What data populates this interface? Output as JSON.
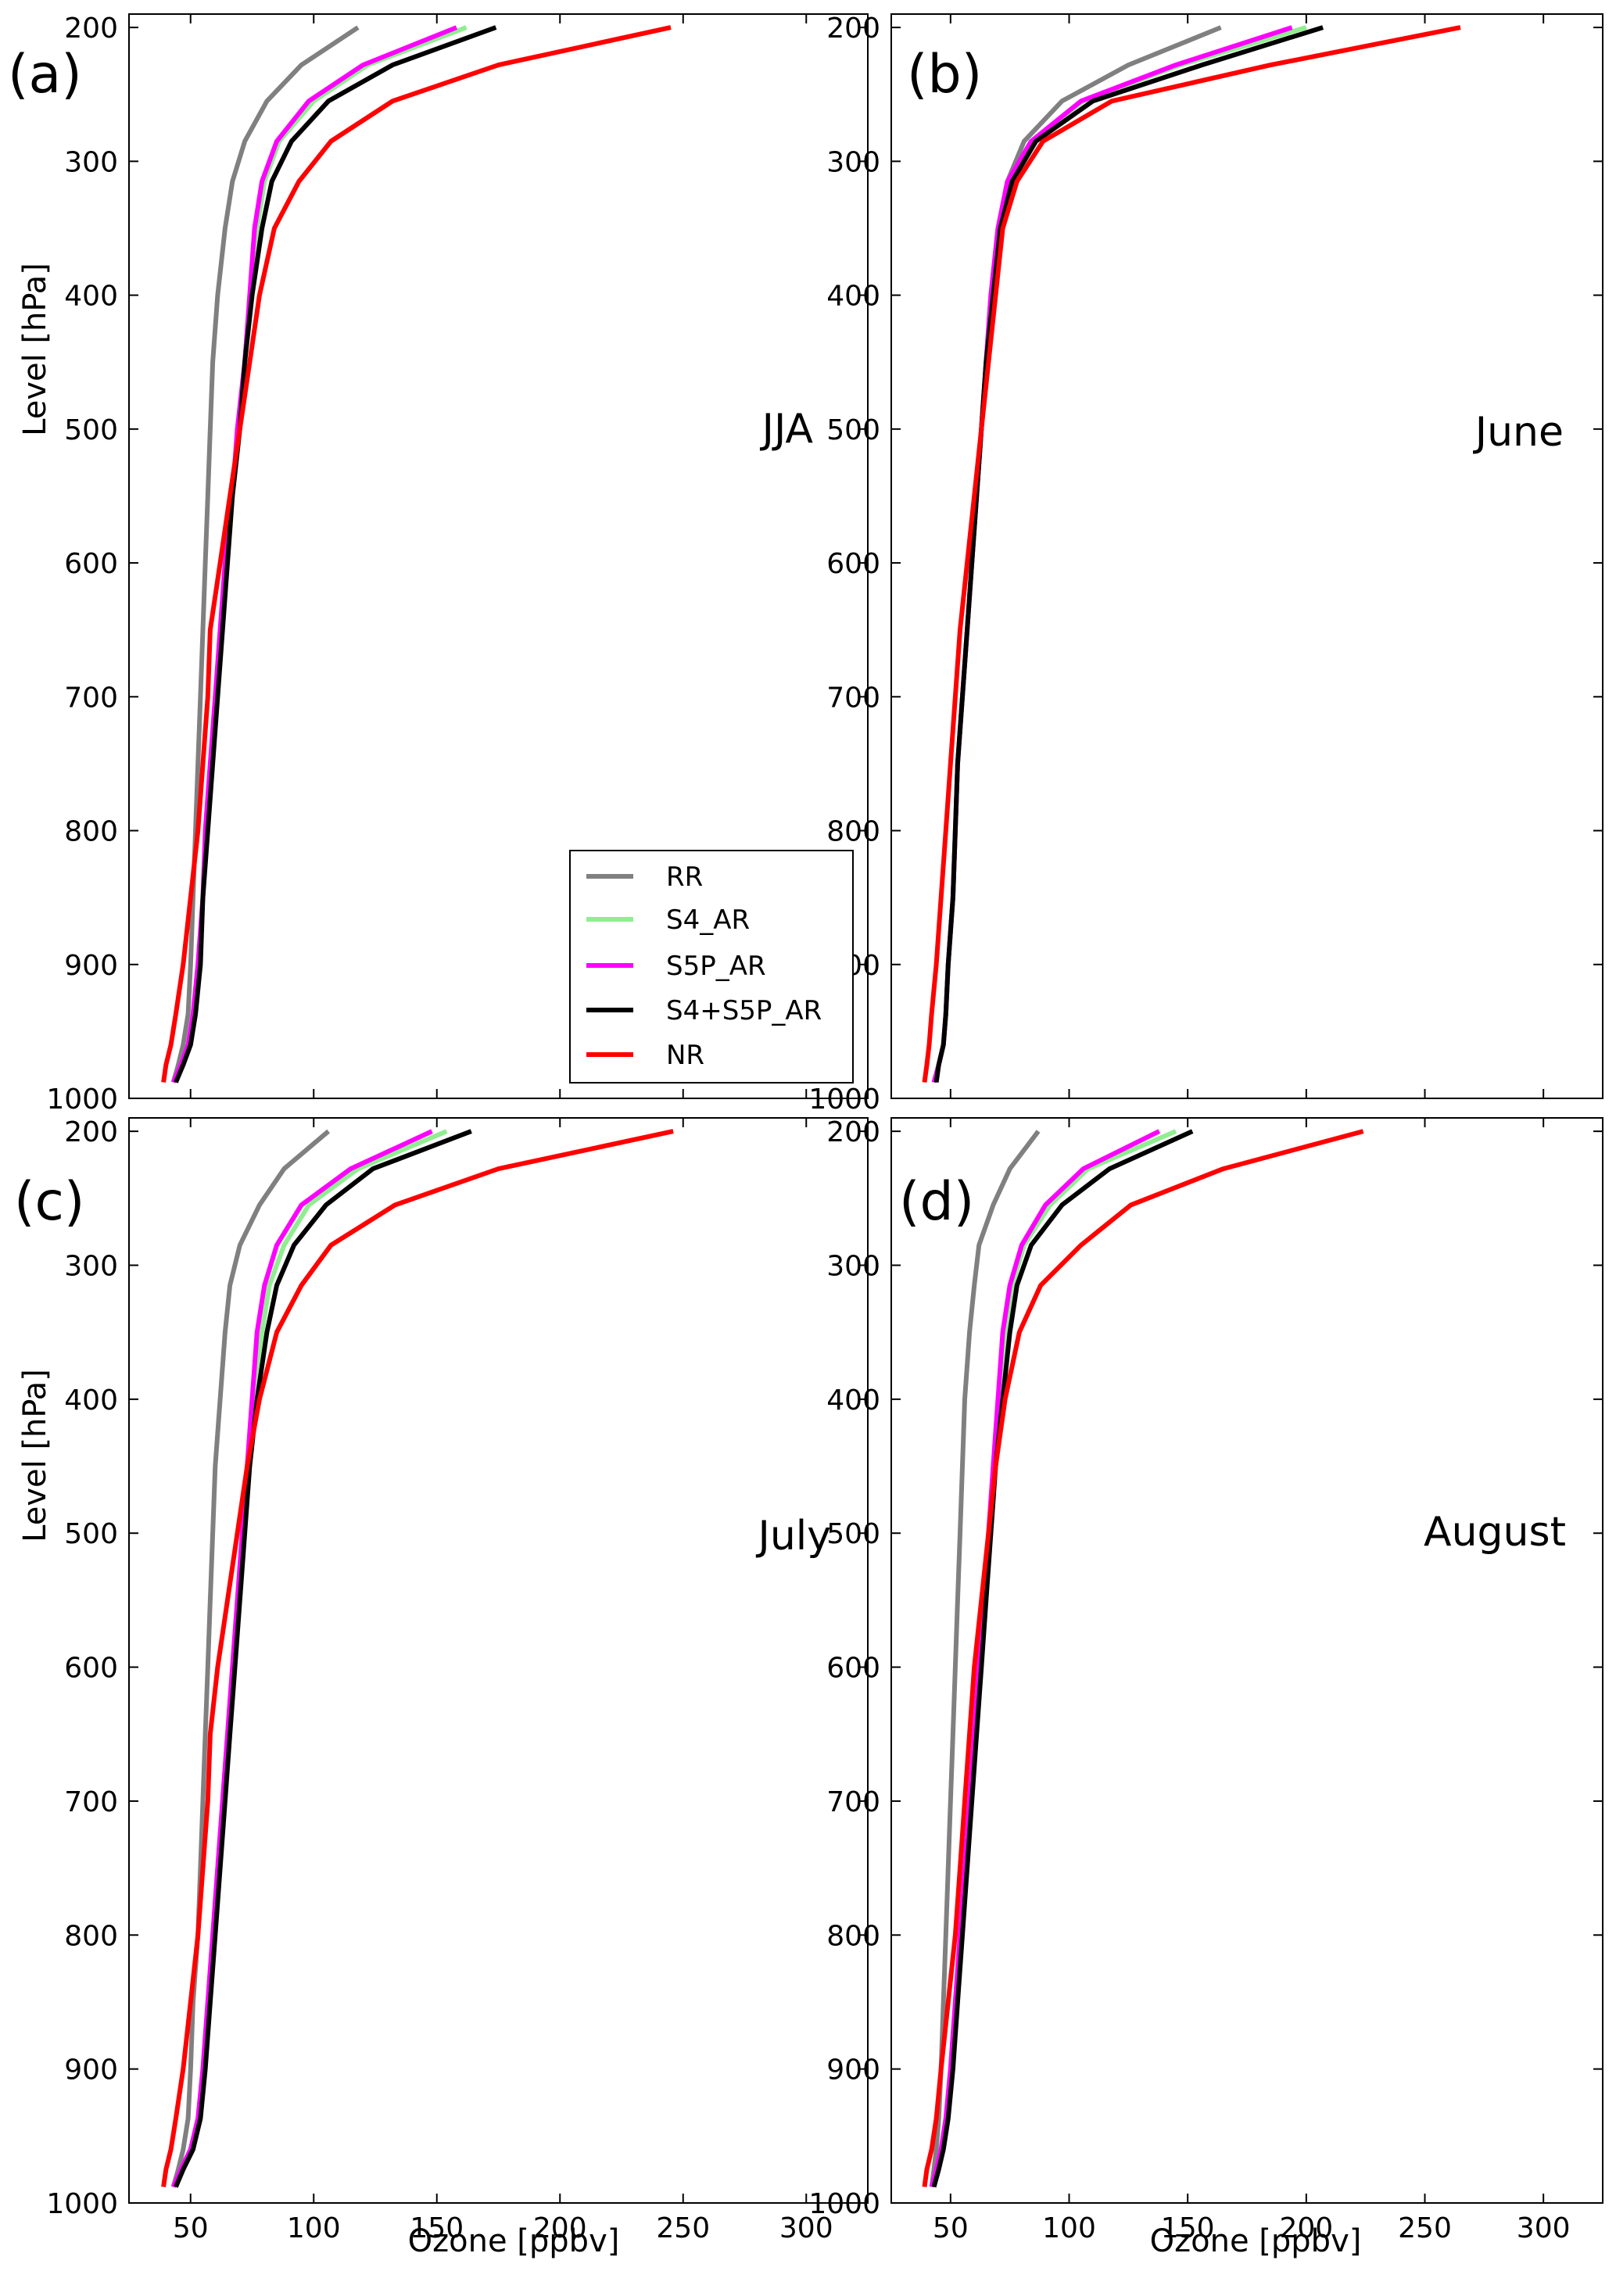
{
  "figure": {
    "ylabel": "Level [hPa]",
    "xlabel": "Ozone [ppbv]"
  },
  "colors": {
    "RR": "#808080",
    "S4_AR": "#90ee90",
    "S5P_AR": "#ff00ff",
    "S4+S5P_AR": "#000000",
    "NR": "#ff0000"
  },
  "legend": {
    "placement": "lower-right of panel (a)",
    "entries": [
      "RR",
      "S4_AR",
      "S5P_AR",
      "S4+S5P_AR",
      "NR"
    ]
  },
  "chart_data": [
    {
      "type": "line",
      "panel": "(a)",
      "label": "JJA",
      "xlim": [
        25,
        325
      ],
      "ylim": [
        1000,
        190
      ],
      "xticks": [
        50,
        100,
        150,
        200,
        250,
        300
      ],
      "yticks": [
        200,
        300,
        400,
        500,
        600,
        700,
        800,
        900,
        1000
      ],
      "y": [
        988,
        975,
        960,
        937,
        900,
        850,
        800,
        750,
        700,
        650,
        600,
        550,
        500,
        450,
        400,
        350,
        315,
        285,
        255,
        228,
        200
      ],
      "series": [
        {
          "name": "RR",
          "values": [
            43,
            45,
            47,
            49,
            50,
            51,
            52,
            53,
            54,
            55,
            56,
            57,
            58,
            59,
            61,
            64,
            67,
            72,
            81,
            95,
            118
          ]
        },
        {
          "name": "S4_AR",
          "values": [
            43,
            46,
            49,
            51,
            53,
            55,
            56,
            58,
            60,
            62,
            64,
            67,
            69,
            72,
            74,
            77,
            80,
            86,
            100,
            122,
            162
          ]
        },
        {
          "name": "S5P_AR",
          "values": [
            43,
            46,
            49,
            51,
            53,
            55,
            56,
            58,
            60,
            62,
            64,
            67,
            69,
            72,
            74,
            76,
            79,
            85,
            98,
            120,
            158
          ]
        },
        {
          "name": "S4+S5P_AR",
          "values": [
            44,
            47,
            50,
            52,
            54,
            55,
            57,
            59,
            61,
            63,
            65,
            67,
            70,
            72,
            75,
            79,
            83,
            91,
            106,
            132,
            174
          ]
        },
        {
          "name": "NR",
          "values": [
            39,
            40,
            42,
            44,
            47,
            50,
            53,
            55,
            57,
            58,
            62,
            66,
            70,
            74,
            78,
            84,
            94,
            107,
            132,
            175,
            245
          ]
        }
      ]
    },
    {
      "type": "line",
      "panel": "(b)",
      "label": "June",
      "xlim": [
        25,
        325
      ],
      "ylim": [
        1000,
        190
      ],
      "xticks": [
        50,
        100,
        150,
        200,
        250,
        300
      ],
      "yticks": [
        200,
        300,
        400,
        500,
        600,
        700,
        800,
        900,
        1000
      ],
      "y": [
        988,
        975,
        960,
        937,
        900,
        850,
        800,
        750,
        700,
        650,
        600,
        550,
        500,
        450,
        400,
        350,
        315,
        285,
        255,
        228,
        200
      ],
      "series": [
        {
          "name": "RR",
          "values": [
            43,
            45,
            47,
            48,
            49,
            51,
            52,
            53,
            55,
            57,
            59,
            61,
            63,
            65,
            67,
            70,
            74,
            81,
            97,
            125,
            164
          ]
        },
        {
          "name": "S4_AR",
          "values": [
            43,
            45,
            47,
            48,
            49,
            51,
            52,
            53,
            55,
            57,
            59,
            61,
            63,
            65,
            67,
            70,
            74,
            84,
            106,
            147,
            200
          ]
        },
        {
          "name": "S5P_AR",
          "values": [
            43,
            45,
            47,
            48,
            49,
            51,
            52,
            53,
            55,
            57,
            59,
            61,
            63,
            65,
            67,
            70,
            74,
            84,
            105,
            145,
            194
          ]
        },
        {
          "name": "S4+S5P_AR",
          "values": [
            44,
            45,
            47,
            48,
            49,
            51,
            52,
            53,
            55,
            57,
            59,
            61,
            63,
            65,
            68,
            71,
            76,
            86,
            110,
            156,
            207
          ]
        },
        {
          "name": "NR",
          "values": [
            39,
            40,
            41,
            42,
            44,
            46,
            48,
            50,
            52,
            54,
            57,
            60,
            63,
            66,
            69,
            72,
            78,
            89,
            118,
            185,
            265
          ]
        }
      ]
    },
    {
      "type": "line",
      "panel": "(c)",
      "label": "July",
      "xlim": [
        25,
        325
      ],
      "ylim": [
        1000,
        190
      ],
      "xticks": [
        50,
        100,
        150,
        200,
        250,
        300
      ],
      "yticks": [
        200,
        300,
        400,
        500,
        600,
        700,
        800,
        900,
        1000
      ],
      "y": [
        988,
        975,
        960,
        937,
        900,
        850,
        800,
        750,
        700,
        650,
        600,
        550,
        500,
        450,
        400,
        350,
        315,
        285,
        255,
        228,
        200
      ],
      "series": [
        {
          "name": "RR",
          "values": [
            43,
            45,
            47,
            49,
            50,
            51,
            53,
            54,
            55,
            56,
            57,
            58,
            59,
            60,
            62,
            64,
            66,
            70,
            78,
            88,
            106
          ]
        },
        {
          "name": "S4_AR",
          "values": [
            43,
            46,
            50,
            53,
            55,
            57,
            59,
            61,
            63,
            65,
            67,
            69,
            71,
            73,
            75,
            79,
            82,
            88,
            98,
            118,
            154
          ]
        },
        {
          "name": "S5P_AR",
          "values": [
            43,
            46,
            50,
            53,
            55,
            57,
            59,
            61,
            63,
            65,
            67,
            69,
            71,
            73,
            75,
            77,
            80,
            85,
            95,
            115,
            148
          ]
        },
        {
          "name": "S4+S5P_AR",
          "values": [
            44,
            47,
            51,
            54,
            56,
            58,
            60,
            62,
            64,
            66,
            68,
            70,
            72,
            74,
            77,
            81,
            85,
            92,
            105,
            124,
            164
          ]
        },
        {
          "name": "NR",
          "values": [
            39,
            40,
            42,
            44,
            47,
            50,
            53,
            55,
            57,
            58,
            61,
            65,
            69,
            73,
            78,
            85,
            95,
            107,
            133,
            175,
            246
          ]
        }
      ]
    },
    {
      "type": "line",
      "panel": "(d)",
      "label": "August",
      "xlim": [
        25,
        325
      ],
      "ylim": [
        1000,
        190
      ],
      "xticks": [
        50,
        100,
        150,
        200,
        250,
        300
      ],
      "yticks": [
        200,
        300,
        400,
        500,
        600,
        700,
        800,
        900,
        1000
      ],
      "y": [
        988,
        975,
        960,
        937,
        900,
        850,
        800,
        750,
        700,
        650,
        600,
        550,
        500,
        450,
        400,
        350,
        315,
        285,
        255,
        228,
        200
      ],
      "series": [
        {
          "name": "RR",
          "values": [
            42,
            43,
            44,
            45,
            46,
            47,
            48,
            49,
            50,
            51,
            52,
            53,
            54,
            55,
            56,
            58,
            60,
            62,
            68,
            75,
            87
          ]
        },
        {
          "name": "S4_AR",
          "values": [
            42,
            44,
            46,
            48,
            50,
            52,
            54,
            56,
            58,
            60,
            62,
            64,
            66,
            68,
            70,
            73,
            76,
            81,
            92,
            108,
            145
          ]
        },
        {
          "name": "S5P_AR",
          "values": [
            42,
            44,
            46,
            48,
            50,
            52,
            54,
            56,
            58,
            60,
            62,
            64,
            66,
            68,
            70,
            72,
            75,
            80,
            90,
            106,
            138
          ]
        },
        {
          "name": "S4+S5P_AR",
          "values": [
            43,
            45,
            47,
            49,
            51,
            53,
            55,
            57,
            59,
            61,
            63,
            65,
            67,
            69,
            72,
            75,
            78,
            84,
            97,
            117,
            152
          ]
        },
        {
          "name": "NR",
          "values": [
            39,
            40,
            42,
            44,
            46,
            49,
            52,
            54,
            56,
            58,
            60,
            63,
            66,
            69,
            73,
            79,
            88,
            105,
            126,
            165,
            224
          ]
        }
      ]
    }
  ]
}
